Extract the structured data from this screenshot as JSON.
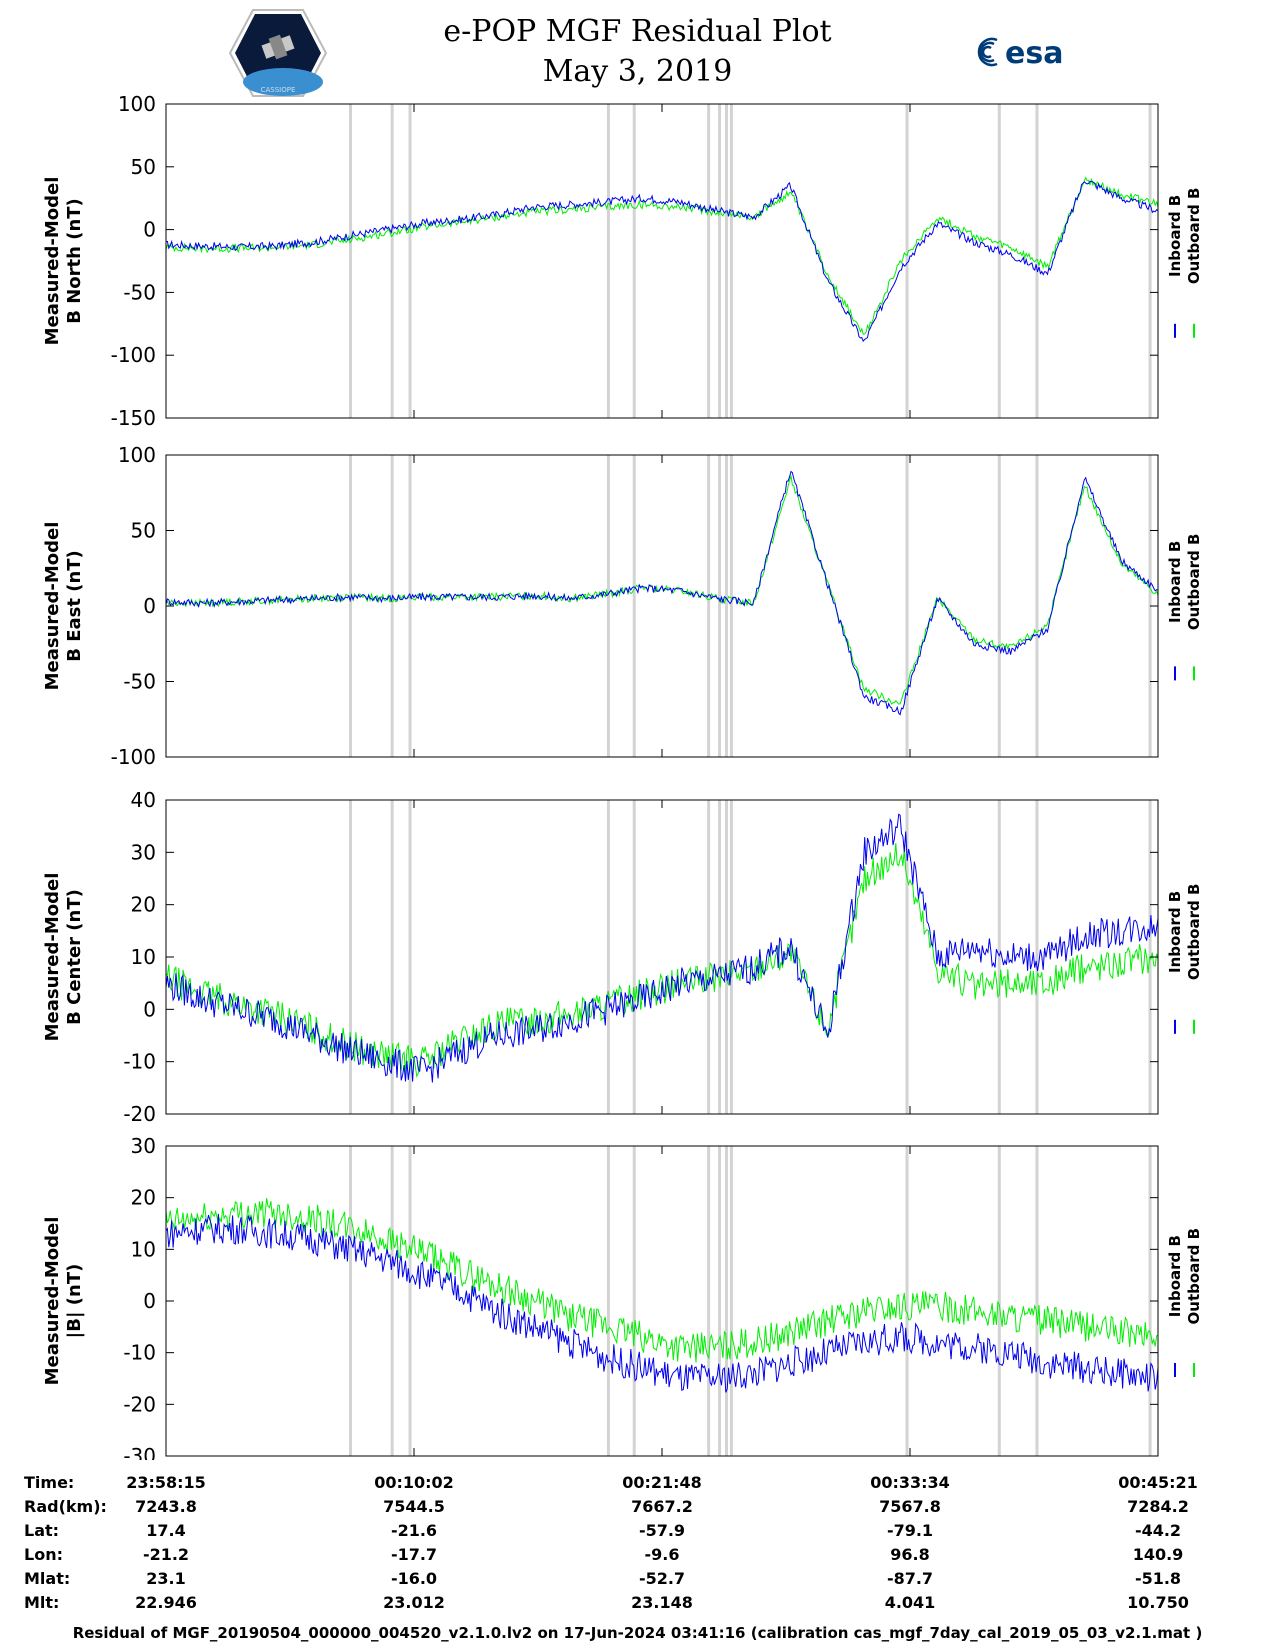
{
  "header": {
    "title": "e-POP MGF Residual Plot",
    "date": "May 3, 2019",
    "logo_left_caption": "CASSIOPE",
    "logo_right_text": "esa"
  },
  "colors": {
    "inboard": "#0000ee",
    "outboard": "#00ee00",
    "gap": "#d3d3d3"
  },
  "chart_data": [
    {
      "type": "line",
      "ylabel": [
        "Measured-Model",
        "B North (nT)"
      ],
      "ylim": [
        -150,
        100
      ],
      "yticks": [
        100,
        50,
        0,
        -50,
        -100,
        -150
      ],
      "series": [
        {
          "name": "Inboard B",
          "values": [
            -12,
            -13,
            -14,
            -13,
            -10,
            -5,
            0,
            5,
            8,
            12,
            18,
            20,
            22,
            25,
            22,
            15,
            10,
            35,
            -40,
            -90,
            -30,
            5,
            -10,
            -20,
            -35,
            40,
            25,
            15
          ]
        },
        {
          "name": "Outboard B",
          "values": [
            -14,
            -15,
            -15,
            -14,
            -12,
            -8,
            -3,
            2,
            6,
            10,
            14,
            16,
            18,
            20,
            18,
            14,
            10,
            30,
            -35,
            -85,
            -25,
            10,
            -5,
            -15,
            -30,
            40,
            28,
            20
          ]
        }
      ]
    },
    {
      "type": "line",
      "ylabel": [
        "Measured-Model",
        "B East (nT)"
      ],
      "ylim": [
        -100,
        100
      ],
      "yticks": [
        100,
        50,
        0,
        -50,
        -100
      ],
      "series": [
        {
          "name": "Inboard B",
          "values": [
            3,
            2,
            3,
            4,
            5,
            6,
            5,
            6,
            6,
            6,
            7,
            5,
            8,
            12,
            10,
            5,
            2,
            90,
            15,
            -60,
            -70,
            5,
            -25,
            -30,
            -15,
            85,
            30,
            10
          ]
        },
        {
          "name": "Outboard B",
          "values": [
            2,
            2,
            3,
            4,
            5,
            6,
            5,
            6,
            6,
            6,
            7,
            5,
            8,
            12,
            10,
            5,
            2,
            85,
            15,
            -55,
            -65,
            5,
            -22,
            -28,
            -12,
            80,
            28,
            8
          ]
        }
      ]
    },
    {
      "type": "line",
      "ylabel": [
        "Measured-Model",
        "B Center (nT)"
      ],
      "ylim": [
        -20,
        40
      ],
      "yticks": [
        40,
        30,
        20,
        10,
        0,
        -10,
        -20
      ],
      "series": [
        {
          "name": "Inboard B",
          "values": [
            5,
            2,
            0,
            -2,
            -5,
            -8,
            -10,
            -12,
            -8,
            -5,
            -4,
            -2,
            0,
            2,
            5,
            6,
            8,
            12,
            -5,
            30,
            35,
            10,
            12,
            10,
            10,
            14,
            15,
            16
          ]
        },
        {
          "name": "Outboard B",
          "values": [
            6,
            3,
            1,
            -1,
            -4,
            -7,
            -9,
            -10,
            -6,
            -3,
            -2,
            -1,
            1,
            3,
            5,
            6,
            8,
            11,
            -4,
            25,
            30,
            8,
            4,
            5,
            5,
            8,
            9,
            10
          ]
        }
      ]
    },
    {
      "type": "line",
      "ylabel": [
        "Measured-Model",
        "|B| (nT)"
      ],
      "ylim": [
        -30,
        30
      ],
      "yticks": [
        30,
        20,
        10,
        0,
        -10,
        -20,
        -30
      ],
      "series": [
        {
          "name": "Inboard B",
          "values": [
            13,
            14,
            14,
            13,
            12,
            10,
            8,
            5,
            2,
            -2,
            -5,
            -8,
            -11,
            -13,
            -15,
            -15,
            -14,
            -12,
            -10,
            -8,
            -7,
            -8,
            -9,
            -10,
            -12,
            -13,
            -14,
            -15
          ]
        },
        {
          "name": "Outboard B",
          "values": [
            15,
            16,
            17,
            17,
            16,
            14,
            12,
            9,
            6,
            3,
            0,
            -3,
            -5,
            -7,
            -9,
            -9,
            -8,
            -6,
            -4,
            -2,
            -1,
            -1,
            -2,
            -3,
            -4,
            -5,
            -6,
            -7
          ]
        }
      ]
    }
  ],
  "table": {
    "rows": [
      {
        "label": "Time:",
        "values": [
          "23:58:15",
          "00:10:02",
          "00:21:48",
          "00:33:34",
          "00:45:21"
        ]
      },
      {
        "label": "Rad(km):",
        "values": [
          "7243.8",
          "7544.5",
          "7667.2",
          "7567.8",
          "7284.2"
        ]
      },
      {
        "label": "Lat:",
        "values": [
          "17.4",
          "-21.6",
          "-57.9",
          "-79.1",
          "-44.2"
        ]
      },
      {
        "label": "Lon:",
        "values": [
          "-21.2",
          "-17.7",
          "-9.6",
          "96.8",
          "140.9"
        ]
      },
      {
        "label": "Mlat:",
        "values": [
          "23.1",
          "-16.0",
          "-52.7",
          "-87.7",
          "-51.8"
        ]
      },
      {
        "label": "Mlt:",
        "values": [
          "22.946",
          "23.012",
          "23.148",
          "4.041",
          "10.750"
        ]
      }
    ]
  },
  "footer": "Residual of MGF_20190504_000000_004520_v2.1.0.lv2 on 17-Jun-2024 03:41:16 (calibration cas_mgf_7day_cal_2019_05_03_v2.1.mat )"
}
